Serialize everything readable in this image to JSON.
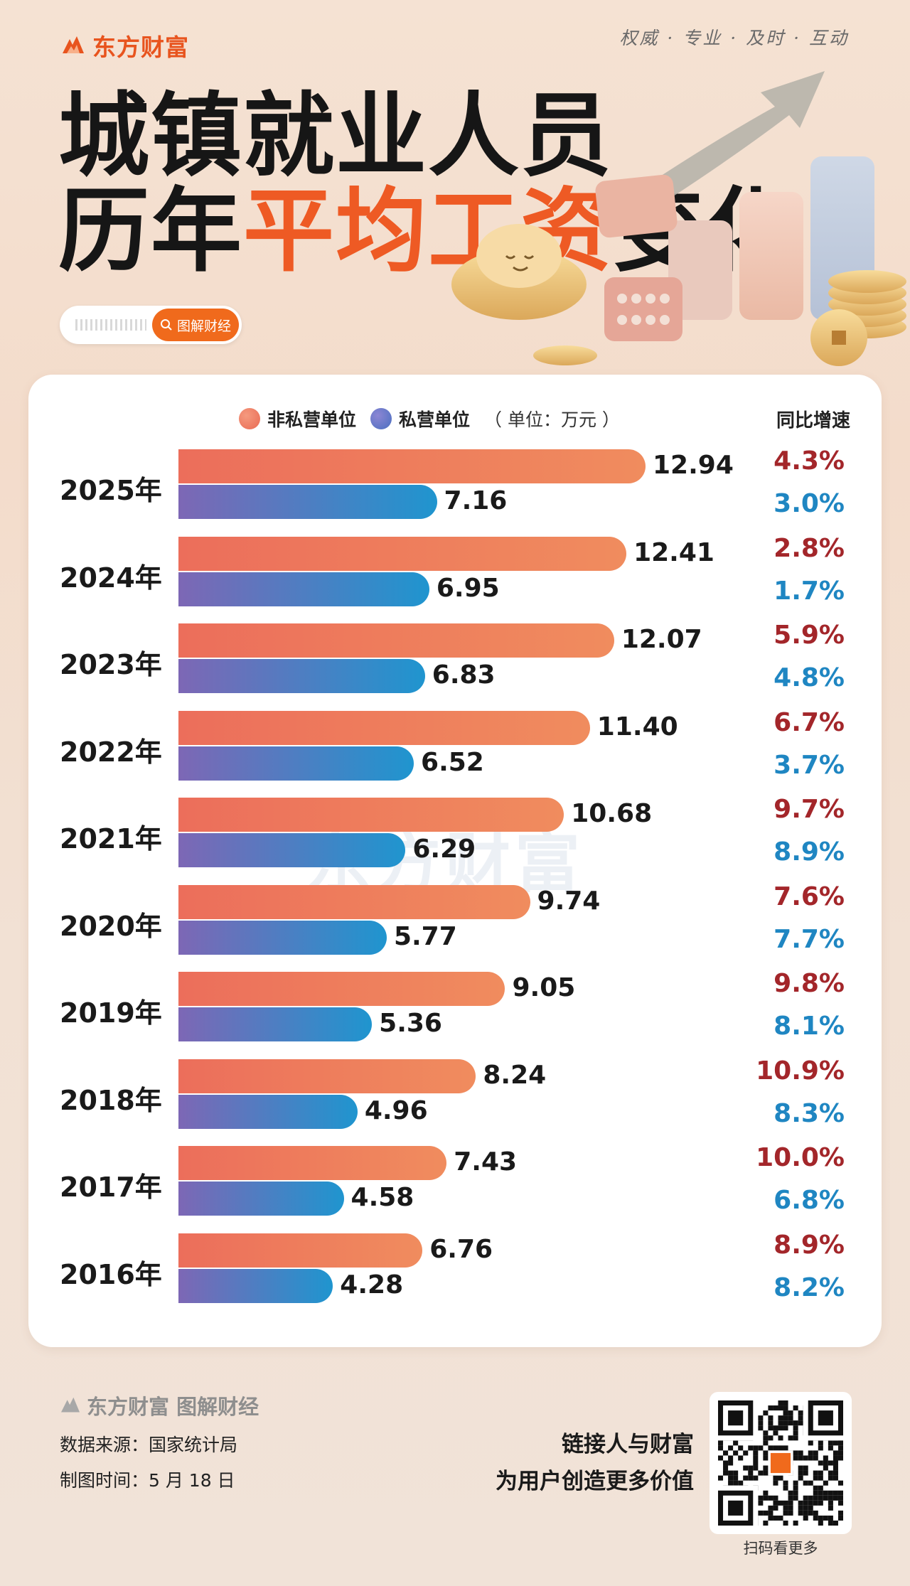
{
  "header": {
    "brand": "东方财富",
    "slogan": "权威 · 专业 · 及时 · 互动",
    "title_line1": "城镇就业人员",
    "title_line2_pre": "历年",
    "title_line2_hl": "平均工资",
    "title_line2_post": "变化",
    "search_button": "图解财经"
  },
  "colors": {
    "brand": "#e8541e",
    "non_private": "#ee7a5c",
    "private": "#4f7fc4",
    "yoy_non_private": "#a3262a",
    "yoy_private": "#1f86c2"
  },
  "chart_data": {
    "type": "bar",
    "orientation": "horizontal",
    "legend": [
      "非私营单位",
      "私营单位"
    ],
    "unit": "（ 单位：万元 ）",
    "yoy_header": "同比增速",
    "categories": [
      "2025年",
      "2024年",
      "2023年",
      "2022年",
      "2021年",
      "2020年",
      "2019年",
      "2018年",
      "2017年",
      "2016年"
    ],
    "series": [
      {
        "name": "非私营单位",
        "values": [
          12.94,
          12.41,
          12.07,
          11.4,
          10.68,
          9.74,
          9.05,
          8.24,
          7.43,
          6.76
        ],
        "labels": [
          "12.94",
          "12.41",
          "12.07",
          "11.40",
          "10.68",
          "9.74",
          "9.05",
          "8.24",
          "7.43",
          "6.76"
        ],
        "yoy": [
          "4.3%",
          "2.8%",
          "5.9%",
          "6.7%",
          "9.7%",
          "7.6%",
          "9.8%",
          "10.9%",
          "10.0%",
          "8.9%"
        ]
      },
      {
        "name": "私营单位",
        "values": [
          7.16,
          6.95,
          6.83,
          6.52,
          6.29,
          5.77,
          5.36,
          4.96,
          4.58,
          4.28
        ],
        "labels": [
          "7.16",
          "6.95",
          "6.83",
          "6.52",
          "6.29",
          "5.77",
          "5.36",
          "4.96",
          "4.58",
          "4.28"
        ],
        "yoy": [
          "3.0%",
          "1.7%",
          "4.8%",
          "3.7%",
          "8.9%",
          "7.7%",
          "8.1%",
          "8.3%",
          "6.8%",
          "8.2%"
        ]
      }
    ],
    "watermark": "东方财富"
  },
  "footer": {
    "brand": "东方财富 图解财经",
    "source": "数据来源：国家统计局",
    "date": "制图时间：5 月 18 日",
    "slogan1": "链接人与财富",
    "slogan2": "为用户创造更多价值",
    "qr_caption": "扫码看更多"
  }
}
